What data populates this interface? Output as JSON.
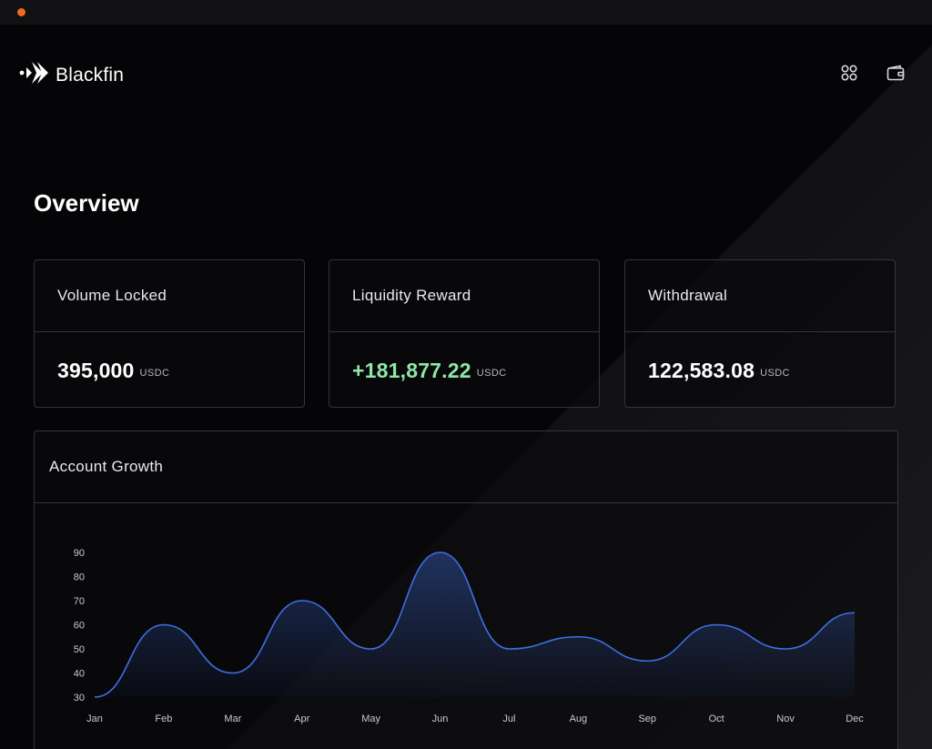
{
  "app": {
    "brand": "Blackfin",
    "accent_color": "#f26a1b",
    "line_color": "#3f6fe0",
    "positive_color": "#8fe6a8"
  },
  "header": {
    "icons": [
      "grid-icon",
      "wallet-icon"
    ]
  },
  "main": {
    "title": "Overview",
    "cards": [
      {
        "label": "Volume Locked",
        "value": "395,000",
        "unit": "USDC"
      },
      {
        "label": "Liquidity Reward",
        "value": "+181,877.22",
        "unit": "USDC"
      },
      {
        "label": "Withdrawal",
        "value": "122,583.08",
        "unit": "USDC"
      }
    ],
    "growth": {
      "title": "Account Growth"
    }
  },
  "chart_data": {
    "type": "area",
    "title": "Account Growth",
    "categories": [
      "Jan",
      "Feb",
      "Mar",
      "Apr",
      "May",
      "Jun",
      "Jul",
      "Aug",
      "Sep",
      "Oct",
      "Nov",
      "Dec"
    ],
    "series": [
      {
        "values": [
          30,
          60,
          40,
          70,
          50,
          90,
          50,
          55,
          45,
          60,
          50,
          65
        ]
      }
    ],
    "yticks": [
      30,
      40,
      50,
      60,
      70,
      80,
      90
    ],
    "ylim": [
      30,
      90
    ],
    "grid": false,
    "legend": "none"
  }
}
